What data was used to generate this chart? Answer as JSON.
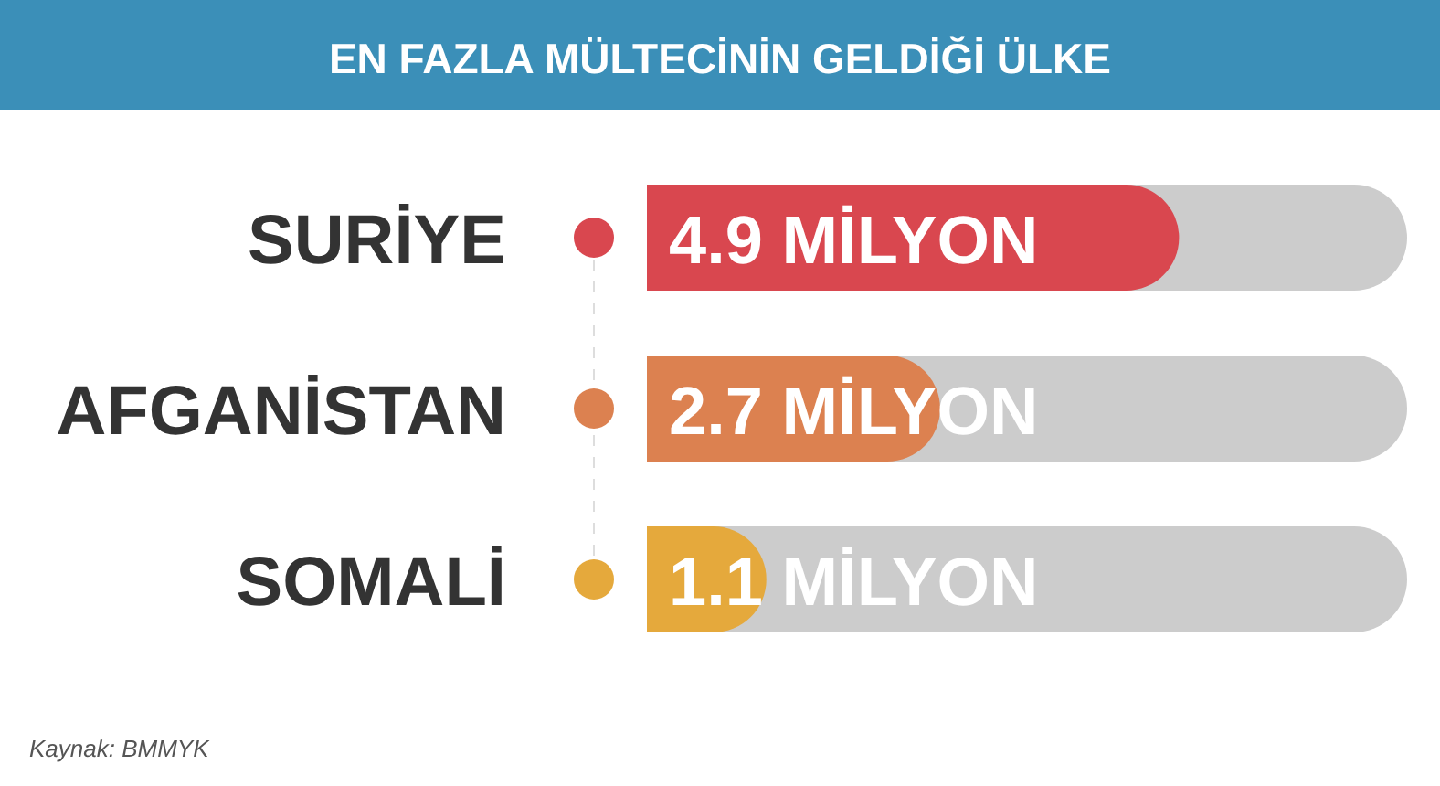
{
  "chart_data": {
    "type": "bar",
    "orientation": "horizontal",
    "title": "EN FAZLA MÜLTECİNİN GELDİĞİ ÜLKE",
    "categories": [
      "SURİYE",
      "AFGANİSTAN",
      "SOMALİ"
    ],
    "values": [
      4.9,
      2.7,
      1.1
    ],
    "colors": [
      "#d9474f",
      "#dc8150",
      "#e5a93c"
    ],
    "value_labels": [
      "4.9 MİLYON",
      "2.7 MİLYON",
      "1.1 MİLYON"
    ],
    "xlim": [
      0,
      7
    ],
    "tick_labels": "y",
    "annotations": [
      "Kaynak: BMMYK"
    ]
  }
}
